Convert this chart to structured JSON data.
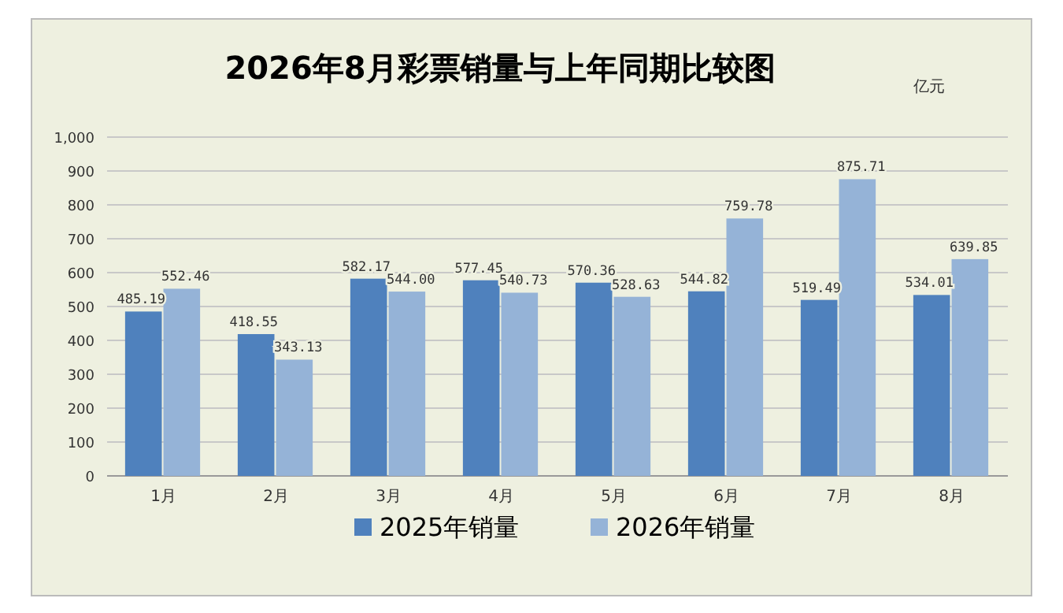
{
  "chart_data": {
    "type": "bar",
    "title": "2026年8月彩票销量与上年同期比较图",
    "annotations": [
      "亿元"
    ],
    "categories": [
      "1月",
      "2月",
      "3月",
      "4月",
      "5月",
      "6月",
      "7月",
      "8月"
    ],
    "series": [
      {
        "name": "2025年销量",
        "color": "#4f81bd",
        "values": [
          485.19,
          418.55,
          582.17,
          577.45,
          570.36,
          544.82,
          519.49,
          534.01
        ],
        "value_labels": [
          "485.19",
          "418.55",
          "582.17",
          "577.45",
          "570.36",
          "544.82",
          "519.49",
          "534.01"
        ]
      },
      {
        "name": "2026年销量",
        "color": "#95b3d7",
        "values": [
          552.46,
          343.13,
          544.0,
          540.73,
          528.63,
          759.78,
          875.71,
          639.85
        ],
        "value_labels": [
          "552.46",
          "343.13",
          "544.00",
          "540.73",
          "528.63",
          "759.78",
          "875.71",
          "639.85"
        ]
      }
    ],
    "ylim": [
      0,
      1000
    ],
    "yticks": [
      0,
      100,
      200,
      300,
      400,
      500,
      600,
      700,
      800,
      900,
      {
        "value": 1000,
        "label": "1,000"
      }
    ],
    "grid": "y",
    "legend": "bottom"
  }
}
